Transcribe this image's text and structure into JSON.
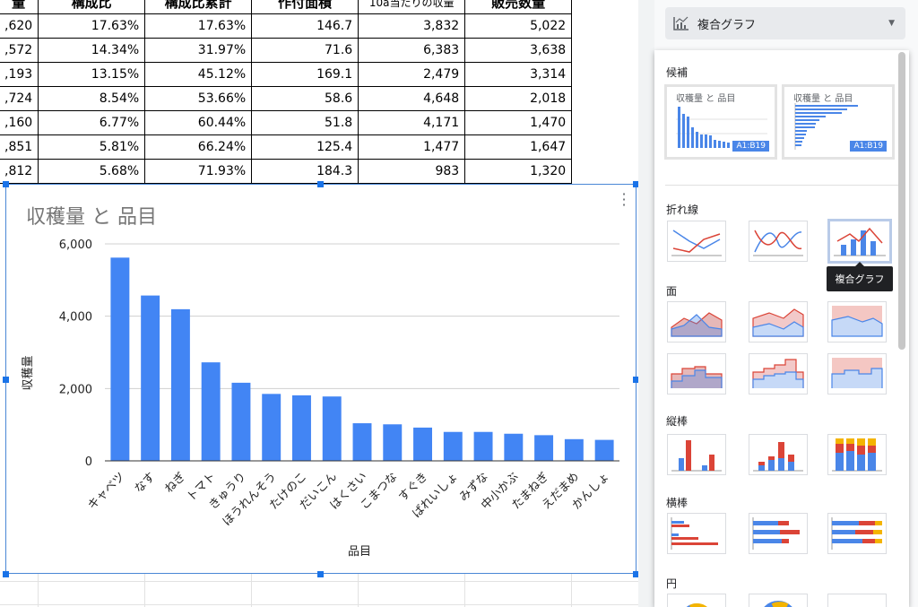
{
  "table": {
    "headers": [
      "量",
      "構成比",
      "構成比累計",
      "作付面積",
      "10a当たりの収量",
      "販売数量"
    ],
    "rows": [
      [
        ",620",
        "17.63%",
        "17.63%",
        "146.7",
        "3,832",
        "5,022"
      ],
      [
        ",572",
        "14.34%",
        "31.97%",
        "71.6",
        "6,383",
        "3,638"
      ],
      [
        ",193",
        "13.15%",
        "45.12%",
        "169.1",
        "2,479",
        "3,314"
      ],
      [
        ",724",
        "8.54%",
        "53.66%",
        "58.6",
        "4,648",
        "2,018"
      ],
      [
        ",160",
        "6.77%",
        "60.44%",
        "51.8",
        "4,171",
        "1,470"
      ],
      [
        ",851",
        "5.81%",
        "66.24%",
        "125.4",
        "1,477",
        "1,647"
      ],
      [
        ",812",
        "5.68%",
        "71.93%",
        "184.3",
        "983",
        "1,320"
      ]
    ]
  },
  "chart_data": {
    "type": "bar",
    "title": "収穫量 と 品目",
    "xlabel": "品目",
    "ylabel": "収穫量",
    "ylim": [
      0,
      6000
    ],
    "yticks": [
      "0",
      "2,000",
      "4,000",
      "6,000"
    ],
    "grid": true,
    "legend": "none",
    "color": "#4285f4",
    "categories": [
      "キャベツ",
      "なす",
      "ねぎ",
      "トマト",
      "きゅうり",
      "ほうれんそう",
      "たけのこ",
      "だいこん",
      "はくさい",
      "こまつな",
      "すぐき",
      "ばれいしょ",
      "みずな",
      "中小かぶ",
      "たまねぎ",
      "えだまめ",
      "かんしょ"
    ],
    "values": [
      5620,
      4572,
      4193,
      2724,
      2160,
      1851,
      1812,
      1780,
      1040,
      1010,
      920,
      800,
      800,
      750,
      710,
      600,
      580
    ]
  },
  "panel": {
    "chart_type_label": "複合グラフ",
    "sections": {
      "suggested": "候補",
      "line": "折れ線",
      "area": "面",
      "column": "縦棒",
      "bar": "横棒",
      "pie": "円"
    },
    "suggestion_title": "収穫量 と 品目",
    "suggestion_range": "A1:B19",
    "tooltip": "複合グラフ"
  },
  "colors": {
    "bar_blue": "#4285f4",
    "red": "#db4437",
    "yellow": "#f4b400",
    "selection": "#1a73e8"
  }
}
